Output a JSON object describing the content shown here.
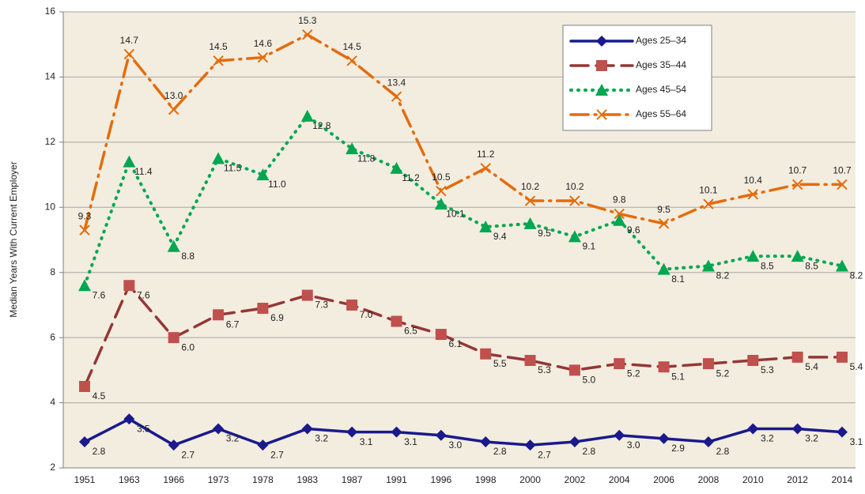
{
  "chart_data": {
    "type": "line",
    "y_label": "Median Years With Current Employer",
    "categories": [
      "1951",
      "1963",
      "1966",
      "1973",
      "1978",
      "1983",
      "1987",
      "1991",
      "1996",
      "1998",
      "2000",
      "2002",
      "2004",
      "2006",
      "2008",
      "2010",
      "2012",
      "2014"
    ],
    "ylim": [
      2,
      16
    ],
    "yticks": [
      2,
      4,
      6,
      8,
      10,
      12,
      14,
      16
    ],
    "grid": true,
    "legend": "top-right",
    "series": [
      {
        "name": "Ages 25–34",
        "color": "#1a1a8c",
        "dash": "solid",
        "marker": "diamond",
        "values": [
          2.8,
          3.5,
          2.7,
          3.2,
          2.7,
          3.2,
          3.1,
          3.1,
          3.0,
          2.8,
          2.7,
          2.8,
          3.0,
          2.9,
          2.8,
          3.2,
          3.2,
          3.1
        ],
        "value_labels": [
          "2.8",
          "3.5",
          "2.7",
          "3.2",
          "2.7",
          "3.2",
          "3.1",
          "3.1",
          "3.0",
          "2.8",
          "2.7",
          "2.8",
          "3.0",
          "2.9",
          "2.8",
          "3.2",
          "3.2",
          "3.1"
        ]
      },
      {
        "name": "Ages 35–44",
        "color": "#953735",
        "marker_color": "#c0504d",
        "dash": "dashed",
        "marker": "square",
        "values": [
          4.5,
          7.6,
          6.0,
          6.7,
          6.9,
          7.3,
          7.0,
          6.5,
          6.1,
          5.5,
          5.3,
          5.0,
          5.2,
          5.1,
          5.2,
          5.3,
          5.4,
          5.4
        ],
        "value_labels": [
          "4.5",
          "7.6",
          "6.0",
          "6.7",
          "6.9",
          "7.3",
          "7.0",
          "6.5",
          "6.1",
          "5.5",
          "5.3",
          "5.0",
          "5.2",
          "5.1",
          "5.2",
          "5.3",
          "5.4",
          "5.4"
        ]
      },
      {
        "name": "Ages 45–54",
        "color": "#00a651",
        "dash": "dotted",
        "marker": "triangle",
        "values": [
          7.6,
          11.4,
          8.8,
          11.5,
          11.0,
          12.8,
          11.8,
          11.2,
          10.1,
          9.4,
          9.5,
          9.1,
          9.6,
          8.1,
          8.2,
          8.5,
          8.5,
          8.2
        ],
        "value_labels": [
          "7.6",
          "11.4",
          "8.8",
          "11.5",
          "11.0",
          "12.8",
          "11.8",
          "11.2",
          "10.1",
          "9.4",
          "9.5",
          "9.1",
          "9.6",
          "8.1",
          "8.2",
          "8.5",
          "8.5",
          "8.2"
        ]
      },
      {
        "name": "Ages 55–64",
        "color": "#e46c0a",
        "dash": "dashdot",
        "marker": "x",
        "values": [
          9.3,
          14.7,
          13.0,
          14.5,
          14.6,
          15.3,
          14.5,
          13.4,
          10.5,
          11.2,
          10.2,
          10.2,
          9.8,
          9.5,
          10.1,
          10.4,
          10.7,
          10.7
        ],
        "value_labels": [
          "9.3",
          "14.7",
          "13.0",
          "14.5",
          "14.6",
          "15.3",
          "14.5",
          "13.4",
          "10.5",
          "11.2",
          "10.2",
          "10.2",
          "9.8",
          "9.5",
          "10.1",
          "10.4",
          "10.7",
          "10.7"
        ]
      }
    ]
  }
}
